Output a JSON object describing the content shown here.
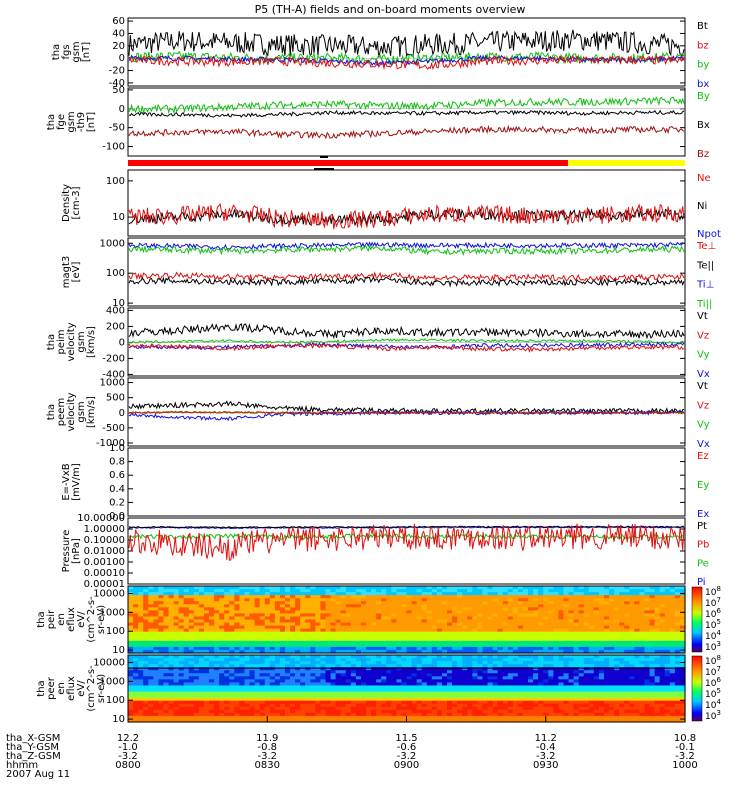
{
  "chart_data": {
    "type": "line",
    "title": "P5 (TH-A) fields and on-board moments overview",
    "panels": [
      {
        "id": "fgs",
        "ylabel": [
          "tha",
          "fgs",
          "gsm",
          "[nT]"
        ],
        "ylim": [
          -45,
          65
        ],
        "ticks": [
          "60",
          "40",
          "20",
          "0",
          "-20",
          "-40"
        ],
        "tickvals": [
          60,
          40,
          20,
          0,
          -20,
          -40
        ],
        "legend": [
          {
            "name": "Bt",
            "color": "#000000"
          },
          {
            "name": "bz",
            "color": "#e01010"
          },
          {
            "name": "by",
            "color": "#10c010"
          },
          {
            "name": "bx",
            "color": "#1010e0"
          }
        ],
        "series": [
          {
            "name": "Bt",
            "color": "#000000",
            "base": [
              22,
              28,
              25,
              22,
              20,
              18,
              22,
              25,
              28,
              30,
              25,
              20
            ],
            "amp": 18
          },
          {
            "name": "by",
            "color": "#10c010",
            "base": [
              2,
              3,
              1,
              0,
              0,
              -2,
              0,
              2,
              2,
              0,
              0,
              2
            ],
            "amp": 8
          },
          {
            "name": "bx",
            "color": "#1010e0",
            "base": [
              0,
              0,
              -2,
              -2,
              -5,
              -8,
              -5,
              0,
              0,
              -3,
              -3,
              0
            ],
            "amp": 4
          },
          {
            "name": "bz",
            "color": "#e01010",
            "base": [
              -3,
              -5,
              -6,
              -5,
              -8,
              -10,
              -12,
              -5,
              -4,
              -3,
              -3,
              -4
            ],
            "amp": 7
          }
        ]
      },
      {
        "id": "fge",
        "ylabel": [
          "tha",
          "fge",
          "gsm",
          "-th9",
          "[nT]"
        ],
        "ylim": [
          -125,
          55
        ],
        "ticks": [
          "50",
          "0",
          "-50",
          "-100"
        ],
        "tickvals": [
          50,
          0,
          -50,
          -100
        ],
        "legend": [
          {
            "name": "By",
            "color": "#10c010"
          },
          {
            "name": "Bx",
            "color": "#000000"
          },
          {
            "name": "Bz",
            "color": "#a01010"
          }
        ],
        "series": [
          {
            "name": "By",
            "color": "#10c010",
            "base": [
              0,
              0,
              5,
              10,
              12,
              8,
              8,
              15,
              18,
              18,
              20,
              22
            ],
            "amp": 10
          },
          {
            "name": "Bx",
            "color": "#000000",
            "base": [
              -15,
              -15,
              -18,
              -15,
              -10,
              -12,
              -12,
              -10,
              -10,
              -12,
              -10,
              -10
            ],
            "amp": 5
          },
          {
            "name": "Bz",
            "color": "#a01010",
            "base": [
              -65,
              -62,
              -60,
              -68,
              -70,
              -65,
              -60,
              -55,
              -55,
              -58,
              -55,
              -55
            ],
            "amp": 8
          }
        ]
      },
      {
        "id": "bar",
        "type": "bar-status",
        "segments": [
          {
            "from": 0,
            "to": 0.79,
            "color": "#ff0000"
          },
          {
            "from": 0.79,
            "to": 1,
            "color": "#ffff00"
          }
        ]
      },
      {
        "id": "density",
        "ylabel": [
          "Density",
          "[cm-3]"
        ],
        "log": true,
        "ylim": [
          3,
          200
        ],
        "ticks": [
          "100",
          "10"
        ],
        "tickvals": [
          100,
          10
        ],
        "legend": [
          {
            "name": "Ne",
            "color": "#e01010"
          },
          {
            "name": "Ni",
            "color": "#000000"
          },
          {
            "name": "Npot",
            "color": "#1010e0"
          }
        ],
        "series": [
          {
            "name": "Ni",
            "color": "#000000",
            "base": [
              9,
              10,
              12,
              9,
              8,
              9,
              12,
              12,
              11,
              11,
              12,
              12
            ],
            "amp": 0.15
          },
          {
            "name": "Ne",
            "color": "#e01010",
            "base": [
              10,
              11,
              14,
              9,
              8,
              9,
              12,
              12,
              11,
              11,
              12,
              13
            ],
            "amp": 0.25
          }
        ]
      },
      {
        "id": "temp",
        "ylabel": [
          "magt3",
          "[eV]"
        ],
        "log": true,
        "ylim": [
          8,
          1500
        ],
        "ticks": [
          "1000",
          "100",
          "10"
        ],
        "tickvals": [
          1000,
          100,
          10
        ],
        "legend": [
          {
            "name": "Te⊥",
            "color": "#e01010"
          },
          {
            "name": "Te||",
            "color": "#000000"
          },
          {
            "name": "Ti⊥",
            "color": "#1010e0"
          },
          {
            "name": "Ti||",
            "color": "#10c010"
          }
        ],
        "series": [
          {
            "name": "Ti⊥",
            "color": "#1010e0",
            "base": [
              850,
              800,
              750,
              800,
              850,
              900,
              850,
              850,
              850,
              850,
              850,
              900
            ],
            "amp": 0.08
          },
          {
            "name": "Ti||",
            "color": "#10c010",
            "base": [
              650,
              600,
              550,
              600,
              650,
              700,
              500,
              550,
              550,
              550,
              600,
              650
            ],
            "amp": 0.1
          },
          {
            "name": "Te⊥",
            "color": "#e01010",
            "base": [
              80,
              85,
              75,
              70,
              80,
              85,
              70,
              70,
              72,
              70,
              72,
              75
            ],
            "amp": 0.1
          },
          {
            "name": "Te||",
            "color": "#000000",
            "base": [
              55,
              55,
              50,
              50,
              55,
              60,
              45,
              48,
              48,
              48,
              50,
              50
            ],
            "amp": 0.1
          }
        ]
      },
      {
        "id": "peim",
        "ylabel": [
          "tha",
          "peim",
          "velocity",
          "gsm",
          "[km/s]"
        ],
        "ylim": [
          -420,
          430
        ],
        "ticks": [
          "400",
          "200",
          "0",
          "-200",
          "-400"
        ],
        "tickvals": [
          400,
          200,
          0,
          -200,
          -400
        ],
        "legend": [
          {
            "name": "Vt",
            "color": "#000000"
          },
          {
            "name": "Vz",
            "color": "#e01010"
          },
          {
            "name": "Vy",
            "color": "#10c010"
          },
          {
            "name": "Vx",
            "color": "#1010e0"
          }
        ],
        "series": [
          {
            "name": "Vt",
            "color": "#000000",
            "base": [
              120,
              150,
              200,
              150,
              100,
              150,
              120,
              130,
              120,
              110,
              100,
              110
            ],
            "amp": 50
          },
          {
            "name": "Vy",
            "color": "#10c010",
            "base": [
              0,
              10,
              20,
              0,
              10,
              30,
              30,
              20,
              20,
              20,
              10,
              0
            ],
            "amp": 15
          },
          {
            "name": "Vx",
            "color": "#1010e0",
            "base": [
              -50,
              -60,
              -60,
              -40,
              -30,
              -50,
              -60,
              -40,
              -40,
              -30,
              -30,
              -20
            ],
            "amp": 25
          },
          {
            "name": "Vz",
            "color": "#e01010",
            "base": [
              -40,
              -50,
              -80,
              -40,
              -40,
              -80,
              -60,
              -80,
              -90,
              -70,
              -60,
              -60
            ],
            "amp": 25
          }
        ]
      },
      {
        "id": "peem",
        "ylabel": [
          "tha",
          "peem",
          "velocity",
          "gsm",
          "[km/s]"
        ],
        "ylim": [
          -1100,
          1150
        ],
        "ticks": [
          "1000",
          "500",
          "0",
          "-500",
          "-1000"
        ],
        "tickvals": [
          1000,
          500,
          0,
          -500,
          -1000
        ],
        "legend": [
          {
            "name": "Vt",
            "color": "#000000"
          },
          {
            "name": "Vz",
            "color": "#e01010"
          },
          {
            "name": "Vy",
            "color": "#10c010"
          },
          {
            "name": "Vx",
            "color": "#1010e0"
          }
        ],
        "series": [
          {
            "name": "Vt",
            "color": "#000000",
            "base": [
              200,
              250,
              300,
              150,
              100,
              80,
              60,
              60,
              60,
              60,
              60,
              60
            ],
            "amp": 80
          },
          {
            "name": "Vy",
            "color": "#10c010",
            "base": [
              0,
              20,
              10,
              0,
              0,
              0,
              0,
              0,
              0,
              0,
              0,
              0
            ],
            "amp": 30
          },
          {
            "name": "Vx",
            "color": "#1010e0",
            "base": [
              -50,
              -150,
              -200,
              -50,
              -20,
              0,
              0,
              0,
              0,
              0,
              0,
              0
            ],
            "amp": 60
          },
          {
            "name": "Vz",
            "color": "#e01010",
            "base": [
              0,
              20,
              10,
              0,
              0,
              0,
              0,
              0,
              0,
              0,
              0,
              0
            ],
            "amp": 30
          }
        ]
      },
      {
        "id": "efield",
        "ylabel": [
          "E=-VxB",
          "[mV/m]"
        ],
        "ylim": [
          0,
          1
        ],
        "ticks": [
          "1.0",
          "0.8",
          "0.6",
          "0.4",
          "0.2",
          "0.0"
        ],
        "tickvals": [
          1,
          0.8,
          0.6,
          0.4,
          0.2,
          0
        ],
        "legend": [
          {
            "name": "Ez",
            "color": "#e01010"
          },
          {
            "name": "Ey",
            "color": "#10c010"
          },
          {
            "name": "Ex",
            "color": "#1010e0"
          }
        ],
        "series": []
      },
      {
        "id": "pressure",
        "ylabel": [
          "Pressure",
          "[nPa]"
        ],
        "log": true,
        "ylim": [
          1e-05,
          10
        ],
        "ticks": [
          "10.00000",
          "1.00000",
          "0.10000",
          "0.01000",
          "0.00100",
          "0.00010",
          "0.00001"
        ],
        "tickvals": [
          10,
          1,
          0.1,
          0.01,
          0.001,
          0.0001,
          1e-05
        ],
        "legend": [
          {
            "name": "Pt",
            "color": "#000000"
          },
          {
            "name": "Pb",
            "color": "#e01010"
          },
          {
            "name": "Pe",
            "color": "#10c010"
          },
          {
            "name": "Pi",
            "color": "#1010e0"
          }
        ],
        "series": [
          {
            "name": "Pi",
            "color": "#1010e0",
            "base": [
              1.3,
              1.3,
              1.2,
              1.3,
              1.3,
              1.3,
              1.4,
              1.4,
              1.4,
              1.4,
              1.4,
              1.4
            ],
            "amp": 0.05
          },
          {
            "name": "Pt",
            "color": "#000000",
            "base": [
              1.5,
              1.5,
              1.4,
              1.5,
              1.5,
              1.5,
              1.6,
              1.6,
              1.6,
              1.6,
              1.6,
              1.6
            ],
            "amp": 0.05
          },
          {
            "name": "Pe",
            "color": "#10c010",
            "base": [
              0.2,
              0.2,
              0.22,
              0.18,
              0.2,
              0.25,
              0.2,
              0.22,
              0.2,
              0.2,
              0.2,
              0.2
            ],
            "amp": 0.2
          },
          {
            "name": "Pb",
            "color": "#e01010",
            "base": [
              0.08,
              0.04,
              0.02,
              0.1,
              0.15,
              0.2,
              0.2,
              0.2,
              0.15,
              0.2,
              0.2,
              0.15
            ],
            "amp": 1.2
          }
        ]
      },
      {
        "id": "peir",
        "type": "spectrogram",
        "ylabel": [
          "tha",
          "peir",
          "en",
          "eflux",
          "eV/",
          "(cm^2-s-",
          "sr-eV)"
        ],
        "log": true,
        "ylim": [
          7,
          25000
        ],
        "ticks": [
          "10000",
          "1000",
          "100",
          "10"
        ],
        "tickvals": [
          10000,
          1000,
          100,
          10
        ],
        "colorbar": [
          "10^8",
          "10^7",
          "10^6",
          "10^5",
          "10^4",
          "10^3"
        ]
      },
      {
        "id": "peer",
        "type": "spectrogram",
        "ylabel": [
          "tha",
          "peer",
          "en",
          "eflux",
          "eV/",
          "(cm^2-s-",
          "sr-eV)"
        ],
        "log": true,
        "ylim": [
          7,
          25000
        ],
        "ticks": [
          "10000",
          "1000",
          "100",
          "10"
        ],
        "tickvals": [
          10000,
          1000,
          100,
          10
        ],
        "colorbar": [
          "10^8",
          "10^7",
          "10^6",
          "10^5",
          "10^4",
          "10^3"
        ]
      }
    ],
    "x_axis": {
      "rows": [
        {
          "label": "tha_X-GSM",
          "values": [
            "12.2",
            "11.9",
            "11.5",
            "11.2",
            "10.8"
          ]
        },
        {
          "label": "tha_Y-GSM",
          "values": [
            "-1.0",
            "-0.8",
            "-0.6",
            "-0.4",
            "-0.1"
          ]
        },
        {
          "label": "tha_Z-GSM",
          "values": [
            "-3.2",
            "-3.2",
            "-3.2",
            "-3.2",
            "-3.2"
          ]
        },
        {
          "label": "hhmm",
          "values": [
            "0800",
            "0830",
            "0900",
            "0930",
            "1000"
          ]
        }
      ],
      "date": "2007 Aug 11"
    }
  }
}
